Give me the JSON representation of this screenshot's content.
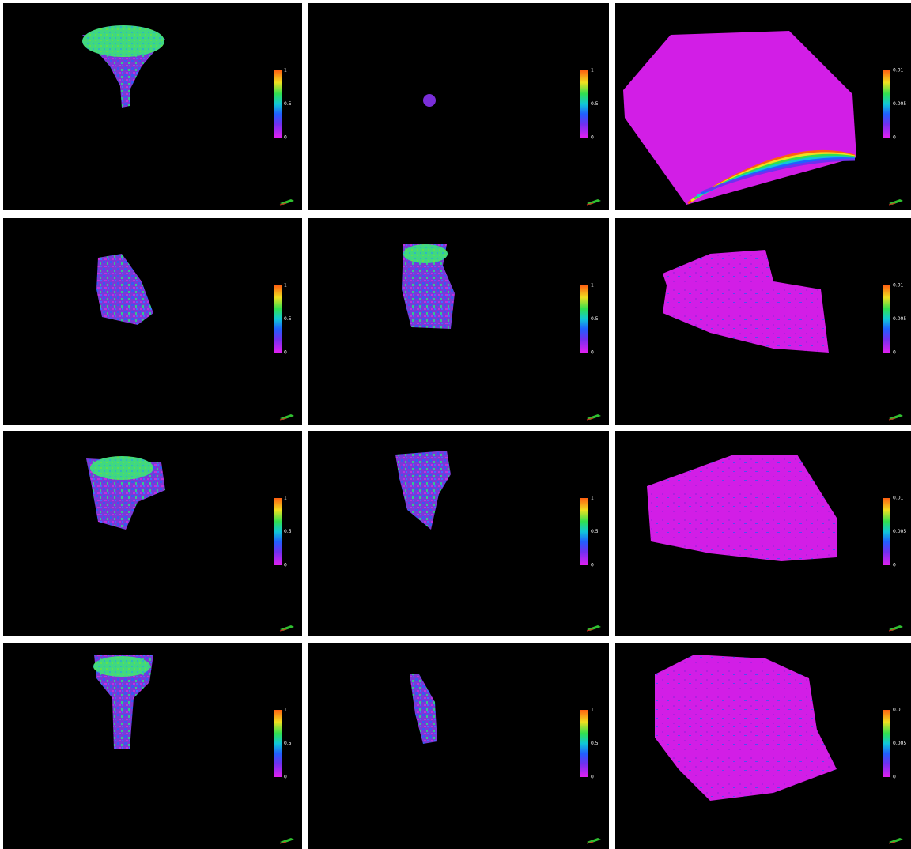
{
  "rows": [
    [
      {
        "colorbar_labels": [
          "1",
          "0.5",
          "0"
        ]
      },
      {
        "colorbar_labels": [
          "1",
          "0.5",
          "0"
        ]
      },
      {
        "colorbar_labels": [
          "0.01",
          "0.005",
          "0"
        ]
      }
    ],
    [
      {
        "colorbar_labels": [
          "1",
          "0.5",
          "0"
        ]
      },
      {
        "colorbar_labels": [
          "1",
          "0.5",
          "0"
        ]
      },
      {
        "colorbar_labels": [
          "0.01",
          "0.005",
          "0"
        ]
      }
    ],
    [
      {
        "colorbar_labels": [
          "1",
          "0.5",
          "0"
        ]
      },
      {
        "colorbar_labels": [
          "1",
          "0.5",
          "0"
        ]
      },
      {
        "colorbar_labels": [
          "0.01",
          "0.005",
          "0"
        ]
      }
    ],
    [
      {
        "colorbar_labels": [
          "1",
          "0.5",
          "0"
        ]
      },
      {
        "colorbar_labels": [
          "1",
          "0.5",
          "0"
        ]
      },
      {
        "colorbar_labels": [
          "0.01",
          "0.005",
          "0"
        ]
      }
    ]
  ]
}
